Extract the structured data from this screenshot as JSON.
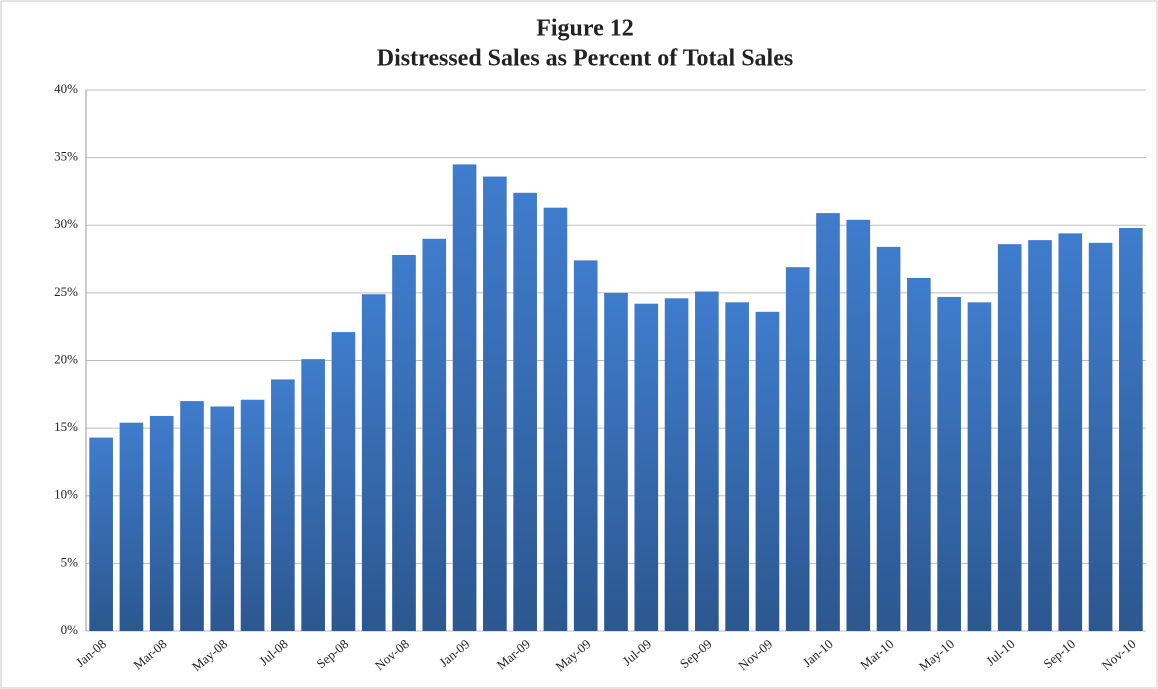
{
  "chart_data": {
    "type": "bar",
    "title": "Figure 12",
    "subtitle": "Distressed Sales as Percent of Total Sales",
    "categories": [
      "Jan-08",
      null,
      "Mar-08",
      null,
      "May-08",
      null,
      "Jul-08",
      null,
      "Sep-08",
      null,
      "Nov-08",
      null,
      "Jan-09",
      null,
      "Mar-09",
      null,
      "May-09",
      null,
      "Jul-09",
      null,
      "Sep-09",
      null,
      "Nov-09",
      null,
      "Jan-10",
      null,
      "Mar-10",
      null,
      "May-10",
      null,
      "Jul-10",
      null,
      "Sep-10",
      null,
      "Nov-10"
    ],
    "values": [
      14.3,
      15.4,
      15.9,
      17.0,
      16.6,
      17.1,
      18.6,
      20.1,
      22.1,
      24.9,
      27.8,
      29.0,
      34.5,
      33.6,
      32.4,
      31.3,
      27.4,
      25.0,
      24.2,
      24.6,
      25.1,
      24.3,
      23.6,
      26.9,
      30.9,
      30.4,
      28.4,
      26.1,
      24.7,
      24.3,
      28.6,
      28.9,
      29.4,
      28.7,
      29.8
    ],
    "color": "#3f7ccc",
    "ylim": [
      0,
      40
    ],
    "yticks": [
      {
        "value": 0,
        "label": "0%"
      },
      {
        "value": 5,
        "label": "5%"
      },
      {
        "value": 10,
        "label": "10%"
      },
      {
        "value": 15,
        "label": "15%"
      },
      {
        "value": 20,
        "label": "20%"
      },
      {
        "value": 25,
        "label": "25%"
      },
      {
        "value": 30,
        "label": "30%"
      },
      {
        "value": 35,
        "label": "35%"
      },
      {
        "value": 40,
        "label": "40%"
      }
    ],
    "grid": true
  }
}
